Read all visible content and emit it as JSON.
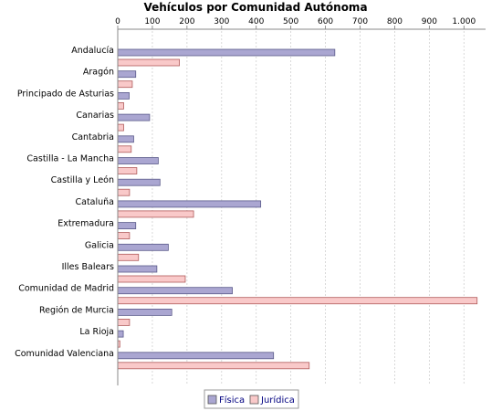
{
  "chart_data": {
    "type": "bar",
    "orientation": "horizontal",
    "title": "Vehículos por Comunidad Autónoma",
    "xlabel": "",
    "ylabel": "",
    "xlim": [
      0,
      1050
    ],
    "ticks": [
      0,
      100,
      200,
      300,
      400,
      500,
      600,
      700,
      800,
      900,
      1000
    ],
    "tick_labels": [
      "0",
      "100",
      "200",
      "300",
      "400",
      "500",
      "600",
      "700",
      "800",
      "900",
      "1.000"
    ],
    "grid": true,
    "legend_position": "bottom",
    "categories": [
      "Andalucía",
      "Aragón",
      "Principado de Asturias",
      "Canarias",
      "Cantabria",
      "Castilla - La Mancha",
      "Castilla y León",
      "Cataluña",
      "Extremadura",
      "Galicia",
      "Illes Balears",
      "Comunidad de Madrid",
      "Región de Murcia",
      "La Rioja",
      "Comunidad Valenciana"
    ],
    "series": [
      {
        "name": "Física",
        "color": "#aaa6d1",
        "values": [
          627,
          52,
          33,
          92,
          46,
          117,
          122,
          413,
          52,
          146,
          113,
          331,
          156,
          16,
          450
        ]
      },
      {
        "name": "Jurídica",
        "color": "#f9c9c9",
        "values": [
          178,
          42,
          17,
          17,
          39,
          55,
          34,
          219,
          34,
          60,
          195,
          1038,
          34,
          6,
          553
        ]
      }
    ]
  }
}
